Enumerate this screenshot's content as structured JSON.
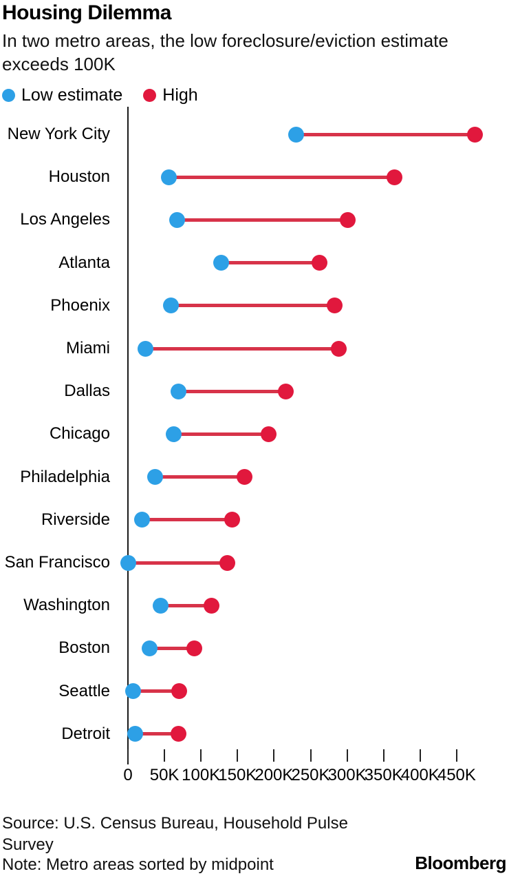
{
  "header": {
    "title": "Housing Dilemma",
    "subtitle": "In two metro areas, the low foreclosure/eviction estimate exceeds 100K"
  },
  "legend": {
    "items": [
      {
        "label": "Low estimate",
        "color": "#2da0e6"
      },
      {
        "label": "High",
        "color": "#e1183d"
      }
    ]
  },
  "chart_data": {
    "type": "scatter",
    "variant": "dumbbell",
    "title": "Housing Dilemma",
    "subtitle": "In two metro areas, the low foreclosure/eviction estimate exceeds 100K",
    "xlabel": "",
    "ylabel": "",
    "unit": "thousands",
    "categories": [
      "New York City",
      "Houston",
      "Los Angeles",
      "Atlanta",
      "Phoenix",
      "Miami",
      "Dallas",
      "Chicago",
      "Philadelphia",
      "Riverside",
      "San Francisco",
      "Washington",
      "Boston",
      "Seattle",
      "Detroit"
    ],
    "series": [
      {
        "name": "Low estimate",
        "color": "#2da0e6",
        "values": [
          230,
          56,
          67,
          128,
          59,
          24,
          69,
          63,
          37,
          19,
          0,
          45,
          30,
          7,
          10
        ]
      },
      {
        "name": "High",
        "color": "#e1183d",
        "values": [
          475,
          365,
          301,
          262,
          283,
          289,
          216,
          193,
          160,
          143,
          136,
          114,
          91,
          70,
          69
        ]
      }
    ],
    "connector_color": "#d73349",
    "x_ticks": [
      "0",
      "50K",
      "100K",
      "150K",
      "200K",
      "250K",
      "300K",
      "350K",
      "400K",
      "450K"
    ],
    "x_tick_values": [
      0,
      50,
      100,
      150,
      200,
      250,
      300,
      350,
      400,
      450
    ],
    "xlim": [
      0,
      520
    ],
    "grid": false,
    "legend_position": "top"
  },
  "footer": {
    "source": "Source: U.S. Census Bureau, Household Pulse Survey",
    "note": "Note: Metro areas sorted by midpoint",
    "brand": "Bloomberg"
  }
}
